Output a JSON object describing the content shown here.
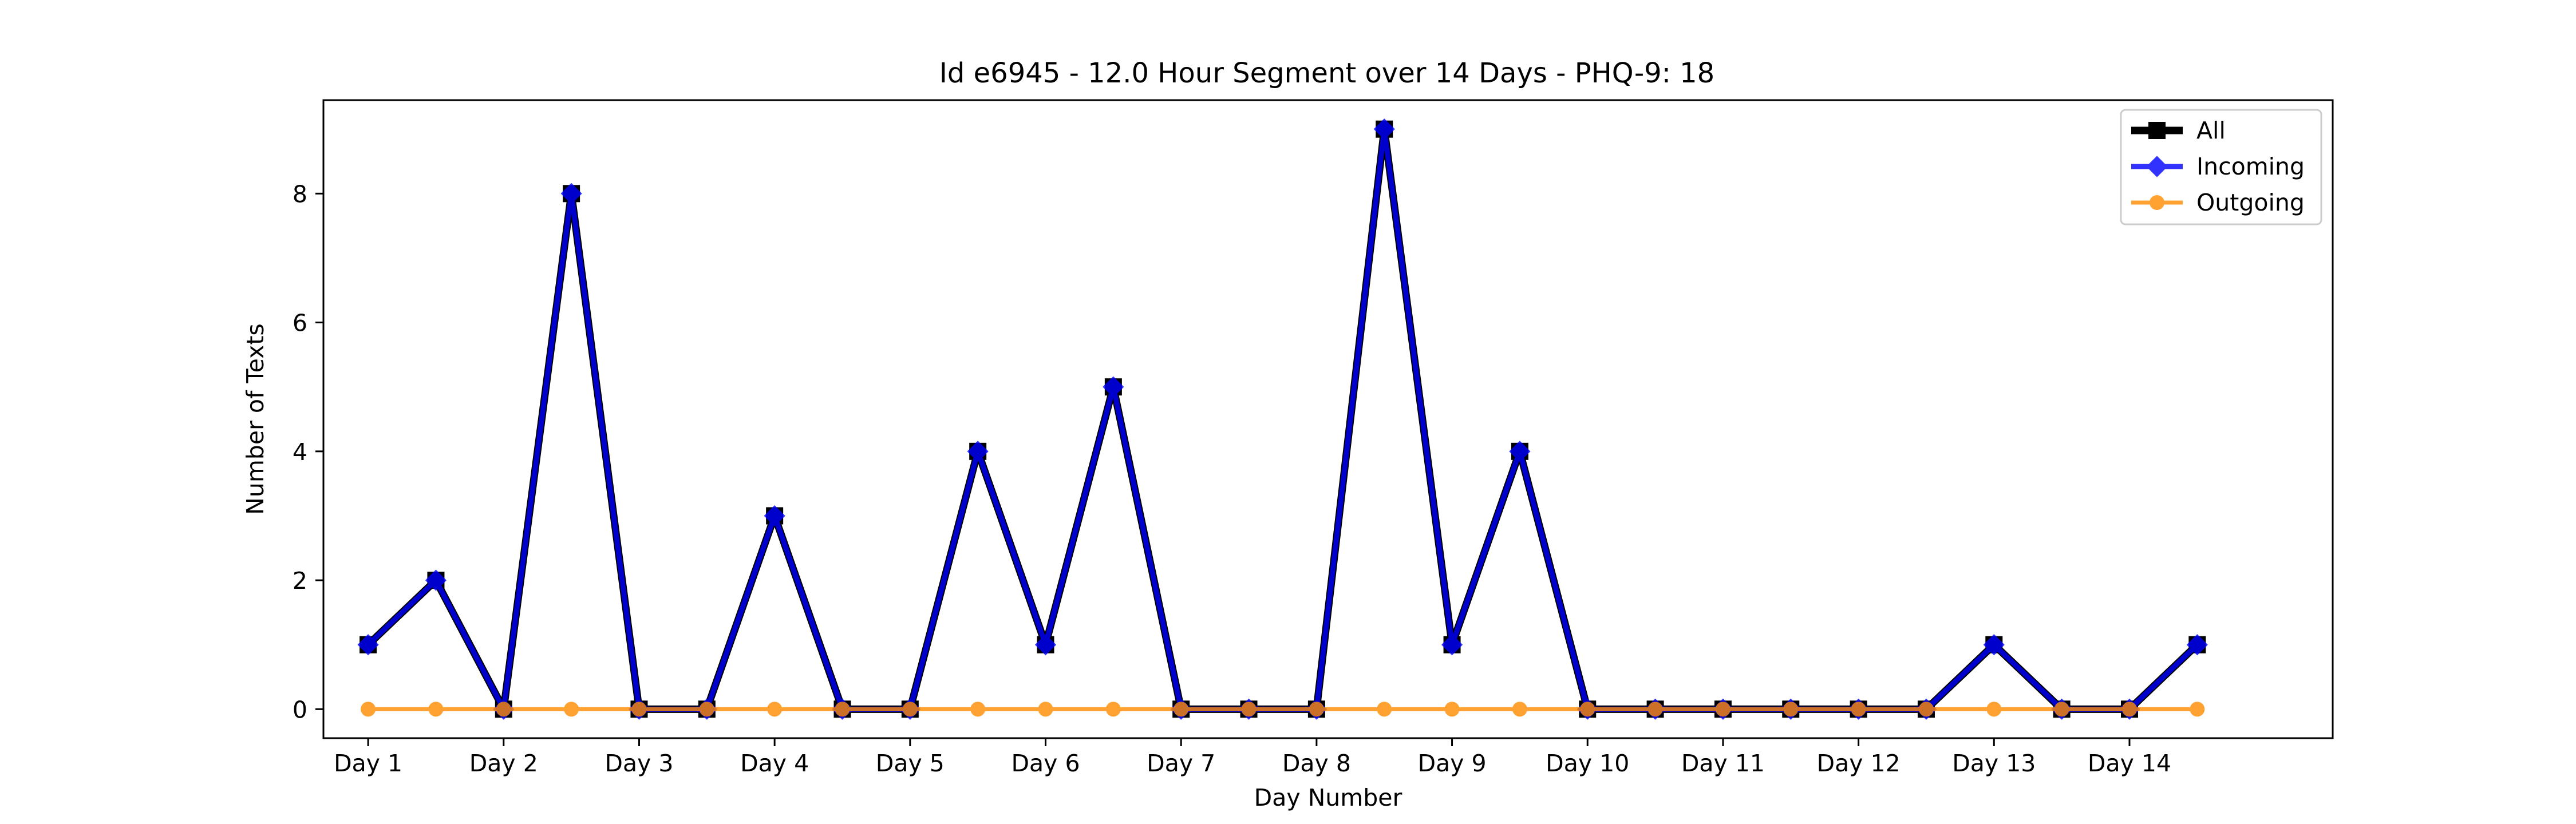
{
  "chart_data": {
    "type": "line",
    "title": "Id e6945 - 12.0 Hour Segment over 14 Days - PHQ-9: 18",
    "xlabel": "Day Number",
    "ylabel": "Number of Texts",
    "x_tick_labels": [
      "Day 1",
      "Day 2",
      "Day 3",
      "Day 4",
      "Day 5",
      "Day 6",
      "Day 7",
      "Day 8",
      "Day 9",
      "Day 10",
      "Day 11",
      "Day 12",
      "Day 13",
      "Day 14"
    ],
    "y_ticks": [
      0,
      2,
      4,
      6,
      8
    ],
    "xlim": [
      0.67,
      15.5
    ],
    "ylim": [
      -0.45,
      9.45
    ],
    "grid": false,
    "legend_position": "top-right",
    "segments": [
      1,
      1.5,
      2,
      2.5,
      3,
      3.5,
      4,
      4.5,
      5,
      5.5,
      6,
      6.5,
      7,
      7.5,
      8,
      8.5,
      9,
      9.5,
      10,
      10.5,
      11,
      11.5,
      12,
      12.5,
      13,
      13.5,
      14,
      14.5
    ],
    "series": [
      {
        "name": "All",
        "color": "#000000",
        "marker": "square",
        "values": [
          1,
          2,
          0,
          8,
          0,
          0,
          3,
          0,
          0,
          4,
          1,
          5,
          0,
          0,
          0,
          9,
          1,
          4,
          0,
          0,
          0,
          0,
          0,
          0,
          1,
          0,
          0,
          1
        ]
      },
      {
        "name": "Incoming",
        "color": "#0000ff",
        "marker": "diamond",
        "values": [
          1,
          2,
          0,
          8,
          0,
          0,
          3,
          0,
          0,
          4,
          1,
          5,
          0,
          0,
          0,
          9,
          1,
          4,
          0,
          0,
          0,
          0,
          0,
          0,
          1,
          0,
          0,
          1
        ]
      },
      {
        "name": "Outgoing",
        "color": "#ff8c00",
        "marker": "circle",
        "values": [
          0,
          0,
          0,
          0,
          0,
          0,
          0,
          0,
          0,
          0,
          0,
          0,
          0,
          0,
          0,
          0,
          0,
          0,
          0,
          0,
          0,
          0,
          0,
          0,
          0,
          0,
          0,
          0
        ]
      }
    ]
  }
}
